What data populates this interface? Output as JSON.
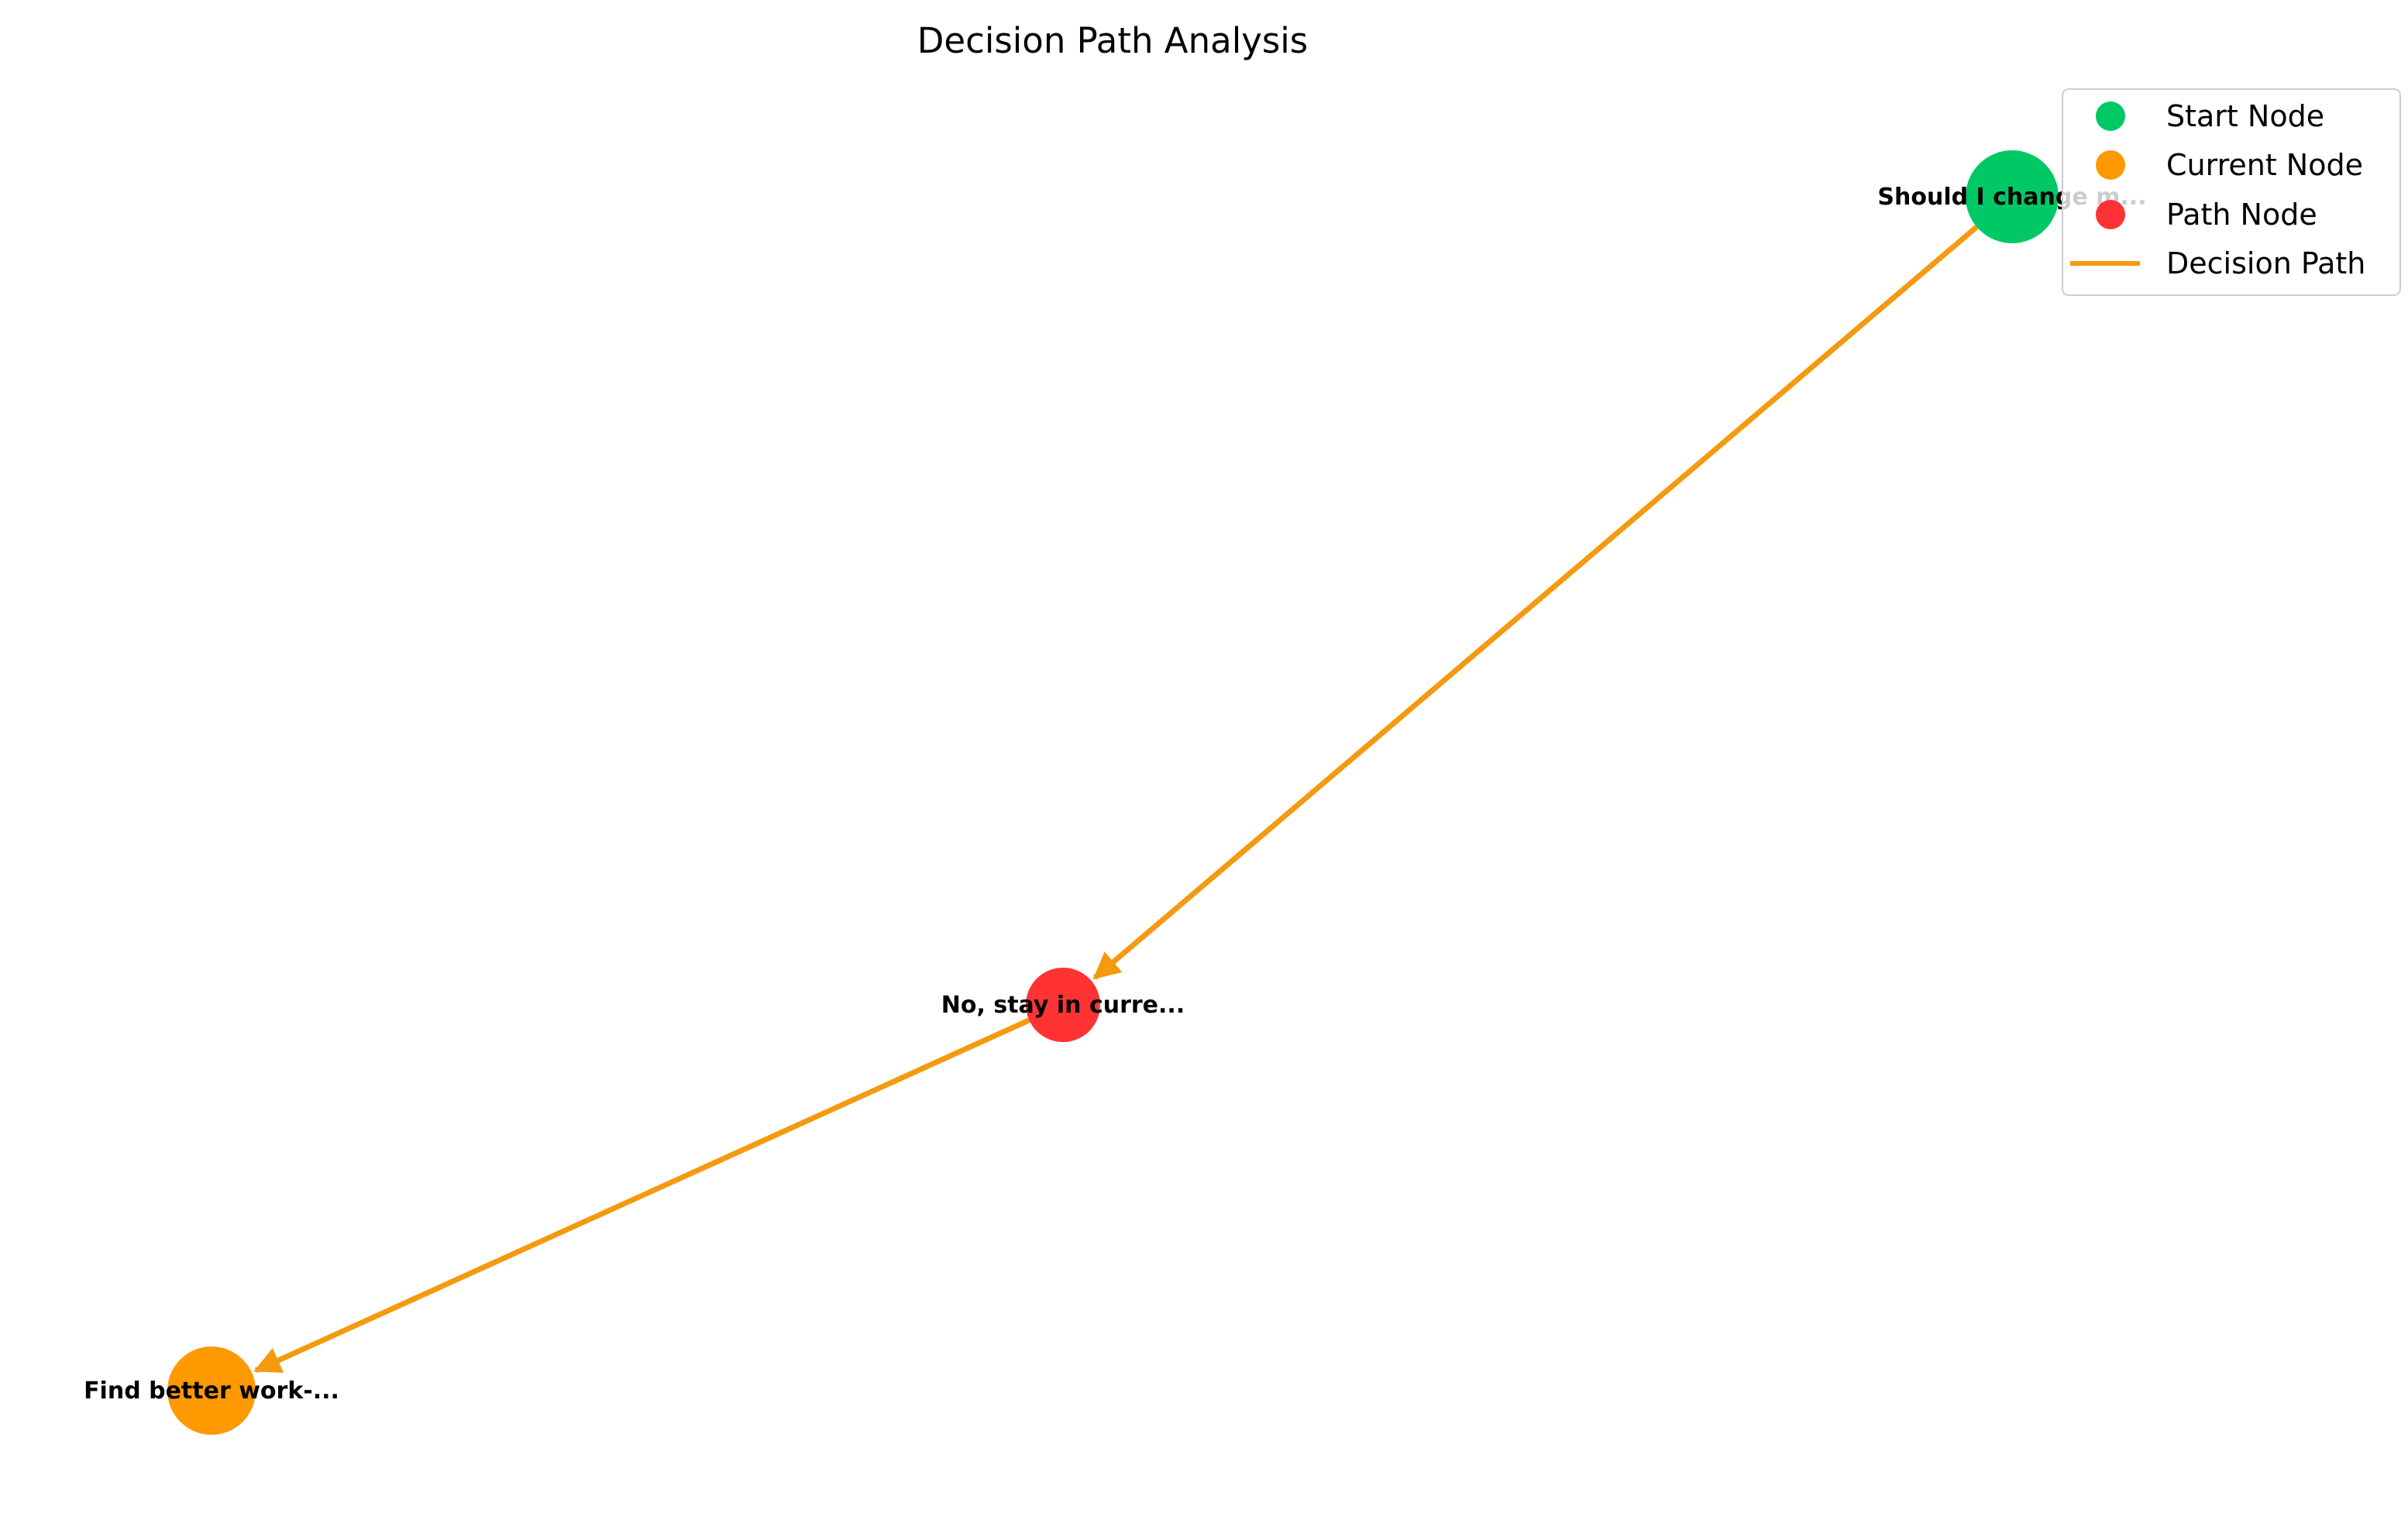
{
  "title": "Decision Path Analysis",
  "colors": {
    "start": "#00c864",
    "current": "#ff9900",
    "path_node": "#ff3333",
    "edge": "#f5990f",
    "legend_border": "#cccccc"
  },
  "nodes": [
    {
      "id": "start",
      "label": "Should I change m...",
      "role": "start"
    },
    {
      "id": "mid",
      "label": "No, stay in curre...",
      "role": "path"
    },
    {
      "id": "current",
      "label": "Find better work-...",
      "role": "current"
    }
  ],
  "edges": [
    {
      "from": "start",
      "to": "mid"
    },
    {
      "from": "mid",
      "to": "current"
    }
  ],
  "legend": {
    "items": [
      {
        "label": "Start Node",
        "kind": "dot",
        "color_key": "start"
      },
      {
        "label": "Current Node",
        "kind": "dot",
        "color_key": "current"
      },
      {
        "label": "Path Node",
        "kind": "dot",
        "color_key": "path_node"
      },
      {
        "label": "Decision Path",
        "kind": "line",
        "color_key": "edge"
      }
    ]
  }
}
